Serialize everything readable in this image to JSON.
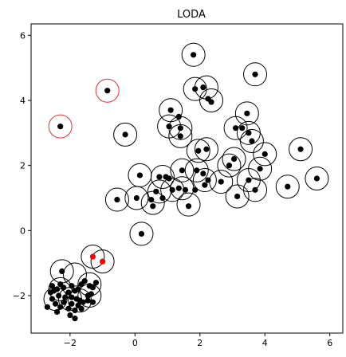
{
  "chart_data": {
    "type": "scatter",
    "title": "LODA",
    "xlabel": "",
    "ylabel": "",
    "xlim": [
      -3.2,
      6.4
    ],
    "ylim": [
      -3.15,
      6.35
    ],
    "xticks": [
      -2,
      0,
      2,
      4,
      6
    ],
    "yticks": [
      -2,
      0,
      2,
      4,
      6
    ],
    "grid": false,
    "legend": "none",
    "colors": {
      "inlier": "#000000",
      "outlier": "#ff0000",
      "ring_inlier": "#000000",
      "ring_outlier": "#e03030"
    },
    "series": [
      {
        "marker": "filled-dot",
        "role": "inlier",
        "points": [
          [
            1.8,
            5.4
          ],
          [
            1.85,
            4.35
          ],
          [
            2.1,
            4.4
          ],
          [
            2.25,
            4.05
          ],
          [
            2.35,
            3.95
          ],
          [
            3.7,
            4.8
          ],
          [
            1.1,
            3.7
          ],
          [
            1.35,
            3.5
          ],
          [
            1.05,
            3.2
          ],
          [
            1.4,
            3.15
          ],
          [
            1.4,
            2.9
          ],
          [
            3.1,
            3.15
          ],
          [
            3.45,
            3.6
          ],
          [
            3.3,
            3.15
          ],
          [
            3.5,
            3.0
          ],
          [
            3.6,
            2.75
          ],
          [
            1.95,
            2.45
          ],
          [
            2.2,
            2.5
          ],
          [
            3.05,
            2.2
          ],
          [
            4.0,
            2.35
          ],
          [
            2.9,
            2.0
          ],
          [
            3.85,
            1.9
          ],
          [
            5.1,
            2.5
          ],
          [
            0.15,
            1.7
          ],
          [
            0.75,
            1.65
          ],
          [
            0.95,
            1.65
          ],
          [
            1.05,
            1.6
          ],
          [
            1.45,
            1.85
          ],
          [
            1.9,
            1.85
          ],
          [
            2.1,
            1.75
          ],
          [
            2.25,
            1.55
          ],
          [
            2.65,
            1.5
          ],
          [
            2.15,
            1.4
          ],
          [
            1.85,
            1.25
          ],
          [
            3.5,
            1.55
          ],
          [
            0.65,
            1.2
          ],
          [
            0.85,
            1.0
          ],
          [
            1.15,
            1.25
          ],
          [
            1.35,
            1.3
          ],
          [
            1.55,
            1.25
          ],
          [
            0.05,
            1.0
          ],
          [
            -0.55,
            0.95
          ],
          [
            0.5,
            0.95
          ],
          [
            0.55,
            0.75
          ],
          [
            1.65,
            0.75
          ],
          [
            3.7,
            1.25
          ],
          [
            3.15,
            1.05
          ],
          [
            4.7,
            1.35
          ],
          [
            5.6,
            1.6
          ],
          [
            -0.3,
            2.95
          ],
          [
            0.2,
            -0.1
          ],
          [
            -2.25,
            -1.25
          ],
          [
            -1.55,
            -1.55
          ],
          [
            -1.4,
            -1.7
          ],
          [
            -1.3,
            -1.75
          ],
          [
            -1.35,
            -1.95
          ],
          [
            -1.45,
            -2.0
          ],
          [
            -1.65,
            -1.65
          ],
          [
            -1.75,
            -1.8
          ],
          [
            -1.85,
            -1.85
          ],
          [
            -1.95,
            -1.7
          ],
          [
            -2.05,
            -1.9
          ],
          [
            -2.2,
            -1.75
          ],
          [
            -2.4,
            -1.8
          ],
          [
            -2.5,
            -1.85
          ],
          [
            -2.6,
            -1.9
          ],
          [
            -2.35,
            -2.0
          ],
          [
            -2.15,
            -2.05
          ],
          [
            -1.95,
            -2.05
          ],
          [
            -1.8,
            -2.1
          ],
          [
            -1.6,
            -2.2
          ],
          [
            -1.75,
            -2.3
          ],
          [
            -1.95,
            -2.25
          ],
          [
            -2.2,
            -2.2
          ],
          [
            -2.45,
            -2.25
          ],
          [
            -2.7,
            -2.35
          ],
          [
            -2.3,
            -2.35
          ],
          [
            -2.05,
            -2.4
          ],
          [
            -1.85,
            -2.45
          ],
          [
            -1.7,
            -2.15
          ],
          [
            -1.85,
            -2.7
          ],
          [
            -2.0,
            -2.6
          ],
          [
            -1.45,
            -2.15
          ],
          [
            -1.3,
            -2.2
          ],
          [
            -2.55,
            -1.7
          ],
          [
            -2.3,
            -1.65
          ],
          [
            -1.2,
            -1.6
          ],
          [
            -1.65,
            -2.4
          ],
          [
            -2.4,
            -2.5
          ],
          [
            -2.55,
            -2.1
          ]
        ]
      },
      {
        "marker": "filled-dot",
        "role": "outlier",
        "points": [
          [
            -1.3,
            -0.8
          ],
          [
            -1.0,
            -0.95
          ]
        ]
      },
      {
        "marker": "ring",
        "role": "inlier",
        "points": [
          [
            1.8,
            5.4
          ],
          [
            1.85,
            4.35
          ],
          [
            2.2,
            4.4
          ],
          [
            2.35,
            4.0
          ],
          [
            3.7,
            4.8
          ],
          [
            1.1,
            3.7
          ],
          [
            1.05,
            3.2
          ],
          [
            1.4,
            3.15
          ],
          [
            1.4,
            2.9
          ],
          [
            3.1,
            3.15
          ],
          [
            3.45,
            3.6
          ],
          [
            3.5,
            3.0
          ],
          [
            3.6,
            2.75
          ],
          [
            1.95,
            2.45
          ],
          [
            2.2,
            2.5
          ],
          [
            3.05,
            2.2
          ],
          [
            4.0,
            2.35
          ],
          [
            2.9,
            2.0
          ],
          [
            3.85,
            1.9
          ],
          [
            5.1,
            2.5
          ],
          [
            0.15,
            1.7
          ],
          [
            0.85,
            1.65
          ],
          [
            1.45,
            1.85
          ],
          [
            1.9,
            1.85
          ],
          [
            2.15,
            1.55
          ],
          [
            2.65,
            1.5
          ],
          [
            3.5,
            1.55
          ],
          [
            0.75,
            1.2
          ],
          [
            1.15,
            1.25
          ],
          [
            1.45,
            1.3
          ],
          [
            0.05,
            1.0
          ],
          [
            -0.55,
            0.95
          ],
          [
            0.55,
            0.85
          ],
          [
            1.65,
            0.8
          ],
          [
            3.7,
            1.25
          ],
          [
            3.15,
            1.05
          ],
          [
            4.7,
            1.35
          ],
          [
            5.6,
            1.6
          ],
          [
            -0.3,
            2.95
          ],
          [
            0.2,
            -0.1
          ],
          [
            -2.25,
            -1.25
          ],
          [
            -1.85,
            -1.35
          ],
          [
            -1.4,
            -1.65
          ],
          [
            -1.4,
            -2.0
          ],
          [
            -2.3,
            -1.8
          ],
          [
            -2.0,
            -2.1
          ],
          [
            -1.7,
            -2.15
          ],
          [
            -2.45,
            -2.1
          ]
        ]
      },
      {
        "marker": "ring",
        "role": "outlier",
        "points": [
          [
            -2.3,
            3.2
          ],
          [
            -0.85,
            4.3
          ]
        ]
      },
      {
        "marker": "ring",
        "role": "inlier",
        "points": [
          [
            -1.3,
            -0.8
          ],
          [
            -1.0,
            -0.95
          ]
        ]
      },
      {
        "marker": "filled-dot",
        "role": "inlier",
        "points": [
          [
            -2.3,
            3.2
          ],
          [
            -0.85,
            4.3
          ]
        ]
      }
    ]
  }
}
